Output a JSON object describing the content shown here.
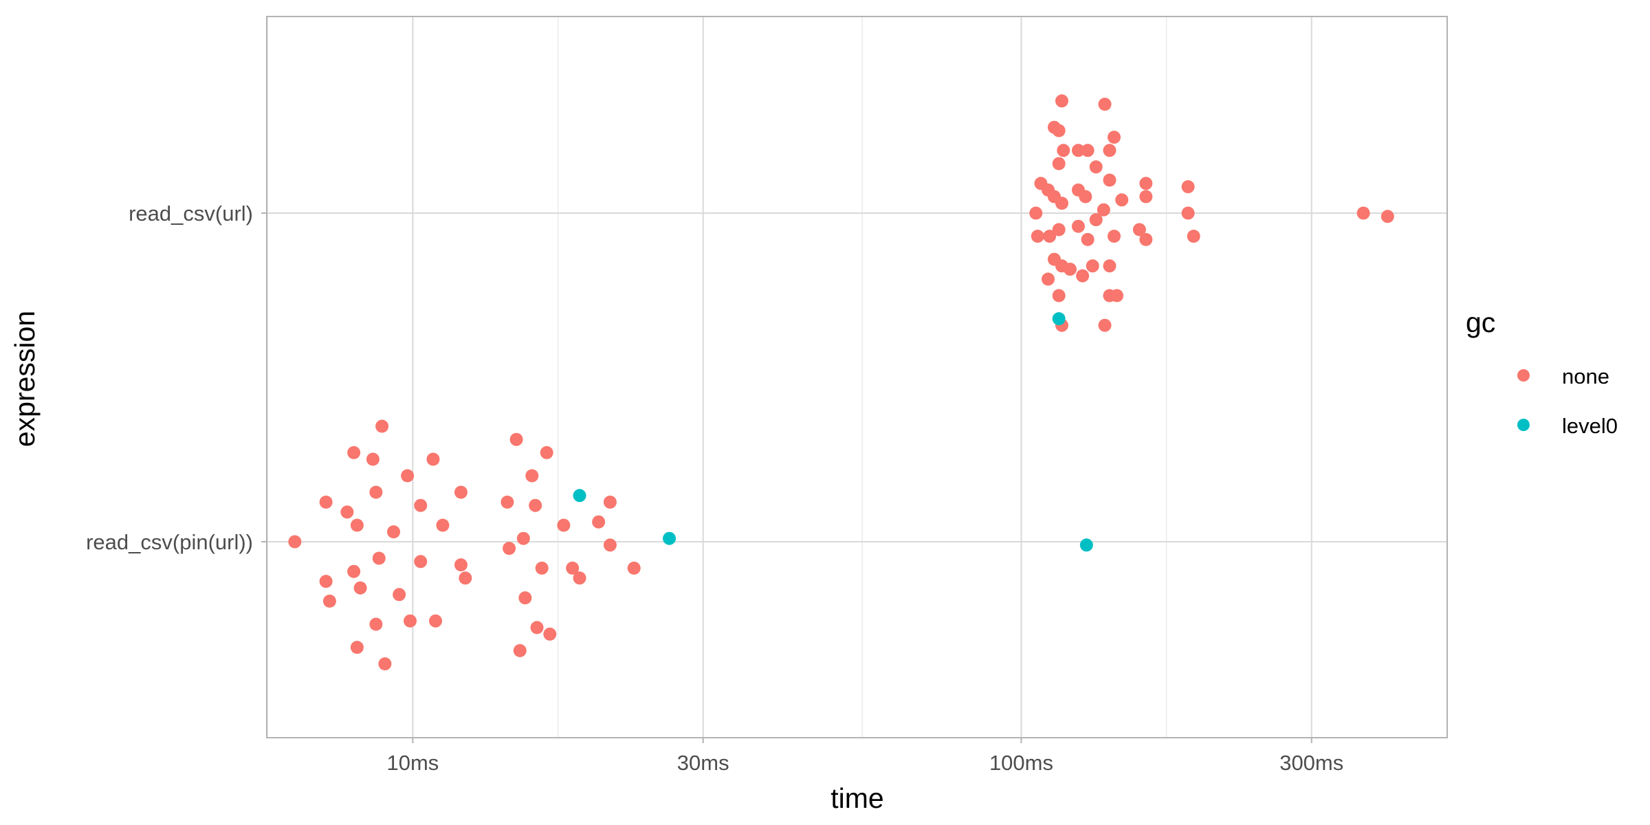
{
  "chart_data": {
    "type": "scatter",
    "title": "",
    "xlabel": "time",
    "ylabel": "expression",
    "x_scale": "log10",
    "x_unit": "ms",
    "x_ticks": [
      {
        "value": 10,
        "label": "10ms"
      },
      {
        "value": 30,
        "label": "30ms"
      },
      {
        "value": 100,
        "label": "100ms"
      },
      {
        "value": 300,
        "label": "300ms"
      }
    ],
    "categories": [
      "read_csv(pin(url))",
      "read_csv(url)"
    ],
    "grid": true,
    "legend": {
      "title": "gc",
      "position": "right",
      "entries": [
        {
          "label": "none",
          "color": "#F8766D"
        },
        {
          "label": "level0",
          "color": "#00BFC4"
        }
      ]
    },
    "series": [
      {
        "name": "none",
        "color": "#F8766D",
        "points": [
          {
            "x": 6.4,
            "category": "read_csv(pin(url))",
            "offset": 0.0
          },
          {
            "x": 7.2,
            "category": "read_csv(pin(url))",
            "offset": 0.12
          },
          {
            "x": 7.2,
            "category": "read_csv(pin(url))",
            "offset": -0.12
          },
          {
            "x": 7.3,
            "category": "read_csv(pin(url))",
            "offset": -0.18
          },
          {
            "x": 7.8,
            "category": "read_csv(pin(url))",
            "offset": 0.09
          },
          {
            "x": 8.0,
            "category": "read_csv(pin(url))",
            "offset": 0.27
          },
          {
            "x": 8.0,
            "category": "read_csv(pin(url))",
            "offset": -0.09
          },
          {
            "x": 8.1,
            "category": "read_csv(pin(url))",
            "offset": 0.05
          },
          {
            "x": 8.1,
            "category": "read_csv(pin(url))",
            "offset": -0.32
          },
          {
            "x": 8.2,
            "category": "read_csv(pin(url))",
            "offset": -0.14
          },
          {
            "x": 8.6,
            "category": "read_csv(pin(url))",
            "offset": 0.25
          },
          {
            "x": 8.7,
            "category": "read_csv(pin(url))",
            "offset": 0.15
          },
          {
            "x": 8.7,
            "category": "read_csv(pin(url))",
            "offset": -0.25
          },
          {
            "x": 8.8,
            "category": "read_csv(pin(url))",
            "offset": -0.05
          },
          {
            "x": 8.9,
            "category": "read_csv(pin(url))",
            "offset": 0.35
          },
          {
            "x": 9.0,
            "category": "read_csv(pin(url))",
            "offset": -0.37
          },
          {
            "x": 9.3,
            "category": "read_csv(pin(url))",
            "offset": 0.03
          },
          {
            "x": 9.5,
            "category": "read_csv(pin(url))",
            "offset": -0.16
          },
          {
            "x": 9.8,
            "category": "read_csv(pin(url))",
            "offset": 0.2
          },
          {
            "x": 9.9,
            "category": "read_csv(pin(url))",
            "offset": -0.24
          },
          {
            "x": 10.3,
            "category": "read_csv(pin(url))",
            "offset": 0.11
          },
          {
            "x": 10.3,
            "category": "read_csv(pin(url))",
            "offset": -0.06
          },
          {
            "x": 10.8,
            "category": "read_csv(pin(url))",
            "offset": 0.25
          },
          {
            "x": 10.9,
            "category": "read_csv(pin(url))",
            "offset": -0.24
          },
          {
            "x": 11.2,
            "category": "read_csv(pin(url))",
            "offset": 0.05
          },
          {
            "x": 12.0,
            "category": "read_csv(pin(url))",
            "offset": 0.15
          },
          {
            "x": 12.0,
            "category": "read_csv(pin(url))",
            "offset": -0.07
          },
          {
            "x": 12.2,
            "category": "read_csv(pin(url))",
            "offset": -0.11
          },
          {
            "x": 14.3,
            "category": "read_csv(pin(url))",
            "offset": 0.12
          },
          {
            "x": 14.4,
            "category": "read_csv(pin(url))",
            "offset": -0.02
          },
          {
            "x": 14.8,
            "category": "read_csv(pin(url))",
            "offset": 0.31
          },
          {
            "x": 15.0,
            "category": "read_csv(pin(url))",
            "offset": -0.33
          },
          {
            "x": 15.2,
            "category": "read_csv(pin(url))",
            "offset": 0.01
          },
          {
            "x": 15.3,
            "category": "read_csv(pin(url))",
            "offset": -0.17
          },
          {
            "x": 15.7,
            "category": "read_csv(pin(url))",
            "offset": 0.2
          },
          {
            "x": 15.9,
            "category": "read_csv(pin(url))",
            "offset": 0.11
          },
          {
            "x": 16.0,
            "category": "read_csv(pin(url))",
            "offset": -0.26
          },
          {
            "x": 16.3,
            "category": "read_csv(pin(url))",
            "offset": -0.08
          },
          {
            "x": 16.6,
            "category": "read_csv(pin(url))",
            "offset": 0.27
          },
          {
            "x": 16.8,
            "category": "read_csv(pin(url))",
            "offset": -0.28
          },
          {
            "x": 17.7,
            "category": "read_csv(pin(url))",
            "offset": 0.05
          },
          {
            "x": 18.3,
            "category": "read_csv(pin(url))",
            "offset": -0.08
          },
          {
            "x": 18.8,
            "category": "read_csv(pin(url))",
            "offset": -0.11
          },
          {
            "x": 20.2,
            "category": "read_csv(pin(url))",
            "offset": 0.06
          },
          {
            "x": 21.1,
            "category": "read_csv(pin(url))",
            "offset": 0.12
          },
          {
            "x": 21.1,
            "category": "read_csv(pin(url))",
            "offset": -0.01
          },
          {
            "x": 23.1,
            "category": "read_csv(pin(url))",
            "offset": -0.08
          },
          {
            "x": 105.7,
            "category": "read_csv(url)",
            "offset": 0.0
          },
          {
            "x": 106.4,
            "category": "read_csv(url)",
            "offset": -0.07
          },
          {
            "x": 107.7,
            "category": "read_csv(url)",
            "offset": 0.09
          },
          {
            "x": 110.7,
            "category": "read_csv(url)",
            "offset": 0.07
          },
          {
            "x": 110.7,
            "category": "read_csv(url)",
            "offset": -0.2
          },
          {
            "x": 111.3,
            "category": "read_csv(url)",
            "offset": -0.07
          },
          {
            "x": 113.3,
            "category": "read_csv(url)",
            "offset": 0.05
          },
          {
            "x": 113.3,
            "category": "read_csv(url)",
            "offset": 0.26
          },
          {
            "x": 113.3,
            "category": "read_csv(url)",
            "offset": -0.14
          },
          {
            "x": 115.3,
            "category": "read_csv(url)",
            "offset": 0.25
          },
          {
            "x": 115.3,
            "category": "read_csv(url)",
            "offset": 0.15
          },
          {
            "x": 115.3,
            "category": "read_csv(url)",
            "offset": -0.05
          },
          {
            "x": 115.3,
            "category": "read_csv(url)",
            "offset": -0.25
          },
          {
            "x": 116.6,
            "category": "read_csv(url)",
            "offset": 0.34
          },
          {
            "x": 116.6,
            "category": "read_csv(url)",
            "offset": 0.03
          },
          {
            "x": 116.6,
            "category": "read_csv(url)",
            "offset": -0.16
          },
          {
            "x": 116.6,
            "category": "read_csv(url)",
            "offset": -0.34
          },
          {
            "x": 117.3,
            "category": "read_csv(url)",
            "offset": 0.19
          },
          {
            "x": 120.3,
            "category": "read_csv(url)",
            "offset": -0.17
          },
          {
            "x": 124.1,
            "category": "read_csv(url)",
            "offset": 0.19
          },
          {
            "x": 124.1,
            "category": "read_csv(url)",
            "offset": 0.07
          },
          {
            "x": 124.1,
            "category": "read_csv(url)",
            "offset": -0.04
          },
          {
            "x": 126.1,
            "category": "read_csv(url)",
            "offset": -0.19
          },
          {
            "x": 127.5,
            "category": "read_csv(url)",
            "offset": 0.05
          },
          {
            "x": 128.6,
            "category": "read_csv(url)",
            "offset": 0.19
          },
          {
            "x": 128.6,
            "category": "read_csv(url)",
            "offset": -0.08
          },
          {
            "x": 131.0,
            "category": "read_csv(url)",
            "offset": -0.16
          },
          {
            "x": 132.7,
            "category": "read_csv(url)",
            "offset": 0.14
          },
          {
            "x": 132.7,
            "category": "read_csv(url)",
            "offset": -0.02
          },
          {
            "x": 136.6,
            "category": "read_csv(url)",
            "offset": 0.01
          },
          {
            "x": 137.2,
            "category": "read_csv(url)",
            "offset": 0.33
          },
          {
            "x": 137.2,
            "category": "read_csv(url)",
            "offset": -0.34
          },
          {
            "x": 139.7,
            "category": "read_csv(url)",
            "offset": 0.19
          },
          {
            "x": 139.7,
            "category": "read_csv(url)",
            "offset": 0.1
          },
          {
            "x": 139.7,
            "category": "read_csv(url)",
            "offset": -0.16
          },
          {
            "x": 139.7,
            "category": "read_csv(url)",
            "offset": -0.25
          },
          {
            "x": 142.1,
            "category": "read_csv(url)",
            "offset": 0.23
          },
          {
            "x": 142.1,
            "category": "read_csv(url)",
            "offset": -0.07
          },
          {
            "x": 143.6,
            "category": "read_csv(url)",
            "offset": -0.25
          },
          {
            "x": 146.3,
            "category": "read_csv(url)",
            "offset": 0.04
          },
          {
            "x": 156.4,
            "category": "read_csv(url)",
            "offset": -0.05
          },
          {
            "x": 160.3,
            "category": "read_csv(url)",
            "offset": 0.09
          },
          {
            "x": 160.3,
            "category": "read_csv(url)",
            "offset": 0.05
          },
          {
            "x": 160.3,
            "category": "read_csv(url)",
            "offset": -0.08
          },
          {
            "x": 188.0,
            "category": "read_csv(url)",
            "offset": 0.08
          },
          {
            "x": 188.0,
            "category": "read_csv(url)",
            "offset": 0.0
          },
          {
            "x": 192.0,
            "category": "read_csv(url)",
            "offset": -0.07
          },
          {
            "x": 365.0,
            "category": "read_csv(url)",
            "offset": 0.0
          },
          {
            "x": 400.0,
            "category": "read_csv(url)",
            "offset": -0.01
          }
        ]
      },
      {
        "name": "level0",
        "color": "#00BFC4",
        "points": [
          {
            "x": 18.8,
            "category": "read_csv(pin(url))",
            "offset": 0.14
          },
          {
            "x": 26.4,
            "category": "read_csv(pin(url))",
            "offset": 0.01
          },
          {
            "x": 128.0,
            "category": "read_csv(pin(url))",
            "offset": -0.01
          },
          {
            "x": 115.3,
            "category": "read_csv(url)",
            "offset": -0.32
          }
        ]
      }
    ]
  }
}
